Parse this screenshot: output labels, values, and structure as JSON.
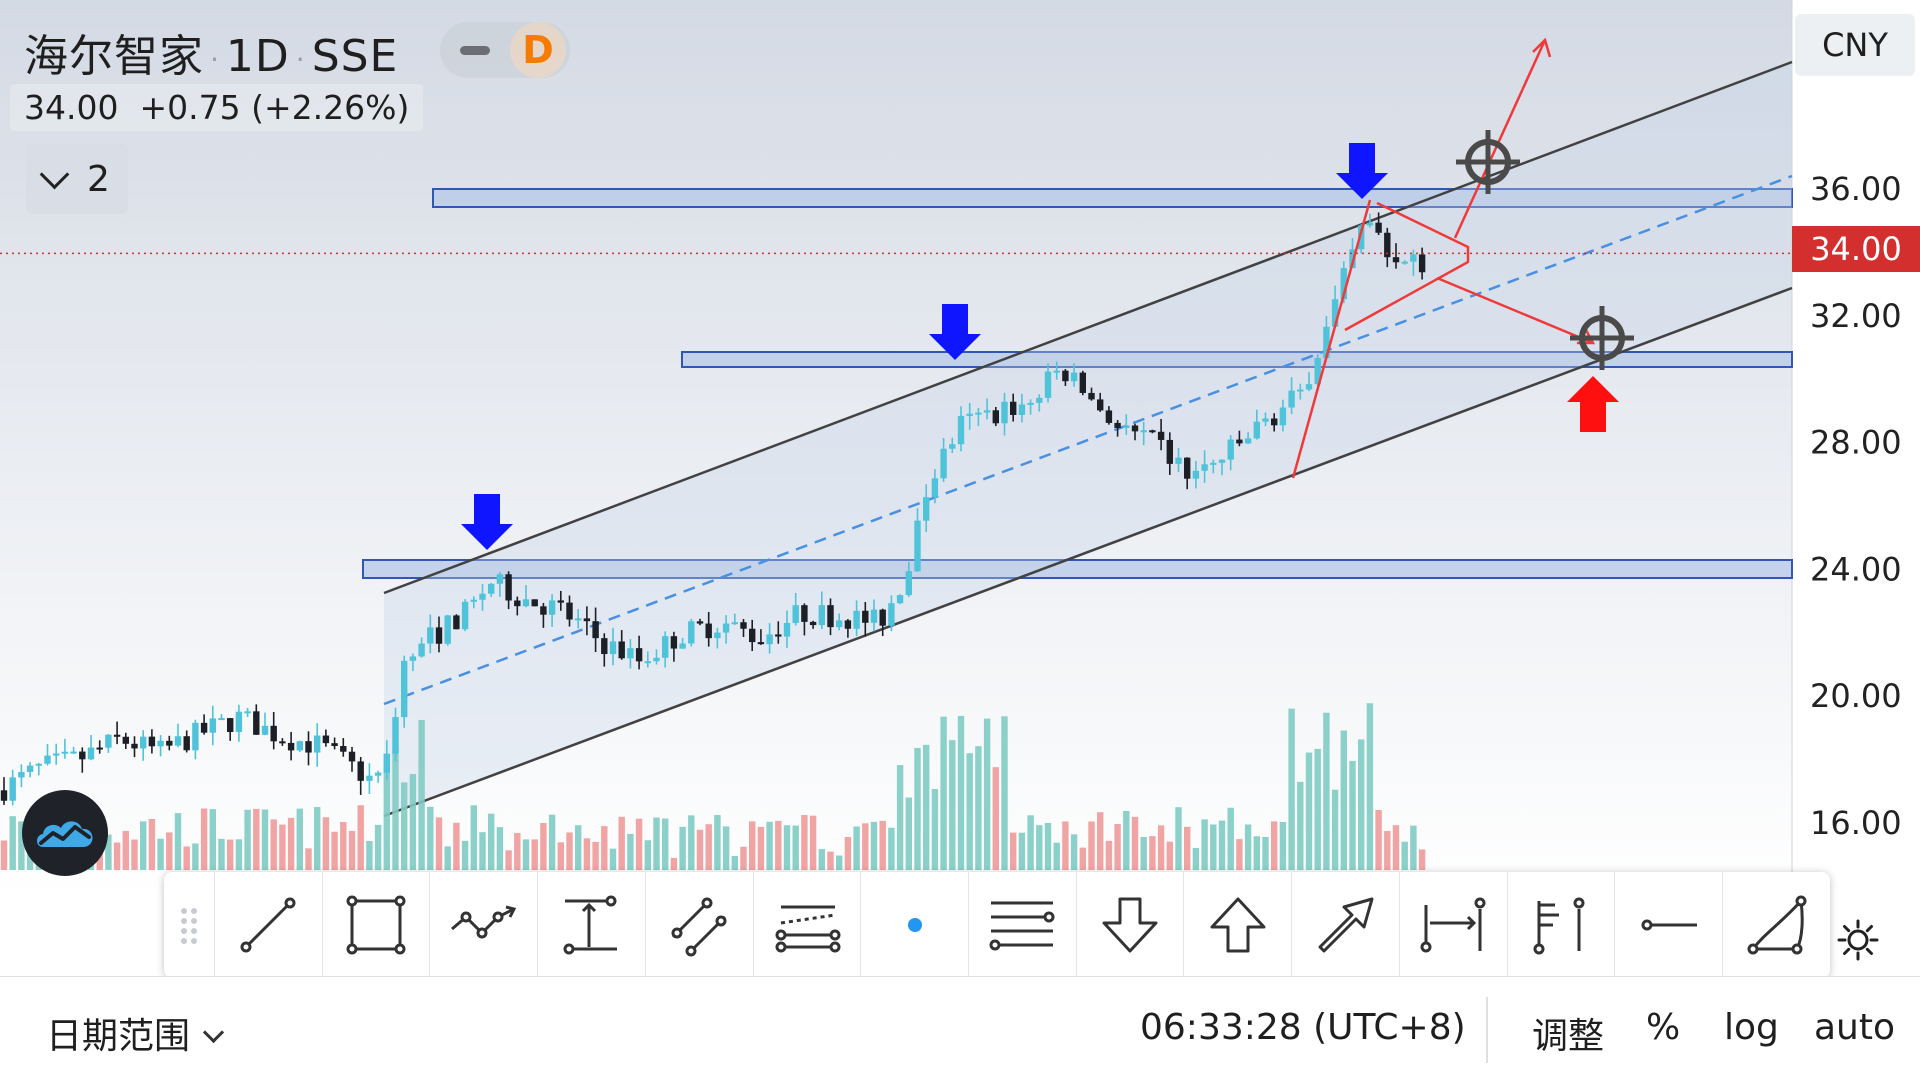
{
  "legend": {
    "symbol": "海尔智家",
    "interval": "1D",
    "exchange": "SSE",
    "badge_letter": "D",
    "last_price": "34.00",
    "change": "+0.75",
    "change_pct": "(+2.26%)",
    "collapsed_count": "2"
  },
  "price_axis": {
    "currency": "CNY",
    "current_price_label": "34.00",
    "ticks": [
      "36.00",
      "32.00",
      "28.00",
      "24.00",
      "20.00",
      "16.00"
    ]
  },
  "colors": {
    "bull_candle": "#4fc3d9",
    "bear_candle": "#1c1f26",
    "vol_up": "#80cbc4",
    "vol_down": "#ef9a9a",
    "channel_line": "#424242",
    "channel_fill": "#c5d3e8",
    "midline": "#4a90e2",
    "zone_fill": "#b9cbe8",
    "zone_border": "#2f57b8",
    "arrow_down": "#1015ff",
    "arrow_up": "#ff1010",
    "annotation_red": "#f03a3a",
    "price_tag": "#d32f2f",
    "accent": "#2196f3"
  },
  "toolbar": {
    "tools": [
      {
        "name": "trend-line-tool",
        "icon": "trend-line-icon"
      },
      {
        "name": "rectangle-tool",
        "icon": "rectangle-icon"
      },
      {
        "name": "path-tool",
        "icon": "path-icon"
      },
      {
        "name": "price-range-tool",
        "icon": "price-range-icon"
      },
      {
        "name": "parallel-channel-tool",
        "icon": "parallel-channel-icon"
      },
      {
        "name": "regression-channel-tool",
        "icon": "regression-channel-icon"
      },
      {
        "name": "dot-tool",
        "icon": "dot-icon"
      },
      {
        "name": "horizontal-lines-tool",
        "icon": "horizontal-lines-icon"
      },
      {
        "name": "arrow-down-tool",
        "icon": "arrow-down-icon"
      },
      {
        "name": "arrow-up-tool",
        "icon": "arrow-up-icon"
      },
      {
        "name": "arrow-tool",
        "icon": "arrow-icon"
      },
      {
        "name": "date-range-tool",
        "icon": "date-range-icon"
      },
      {
        "name": "flag-tool",
        "icon": "flag-icon"
      },
      {
        "name": "horizontal-ray-tool",
        "icon": "horizontal-ray-icon"
      },
      {
        "name": "curve-tool",
        "icon": "curve-icon"
      }
    ]
  },
  "bottom_bar": {
    "date_range_label": "日期范围",
    "time": "06:33:28 (UTC+8)",
    "adjust_label": "调整",
    "percent_label": "%",
    "log_label": "log",
    "auto_label": "auto"
  }
}
